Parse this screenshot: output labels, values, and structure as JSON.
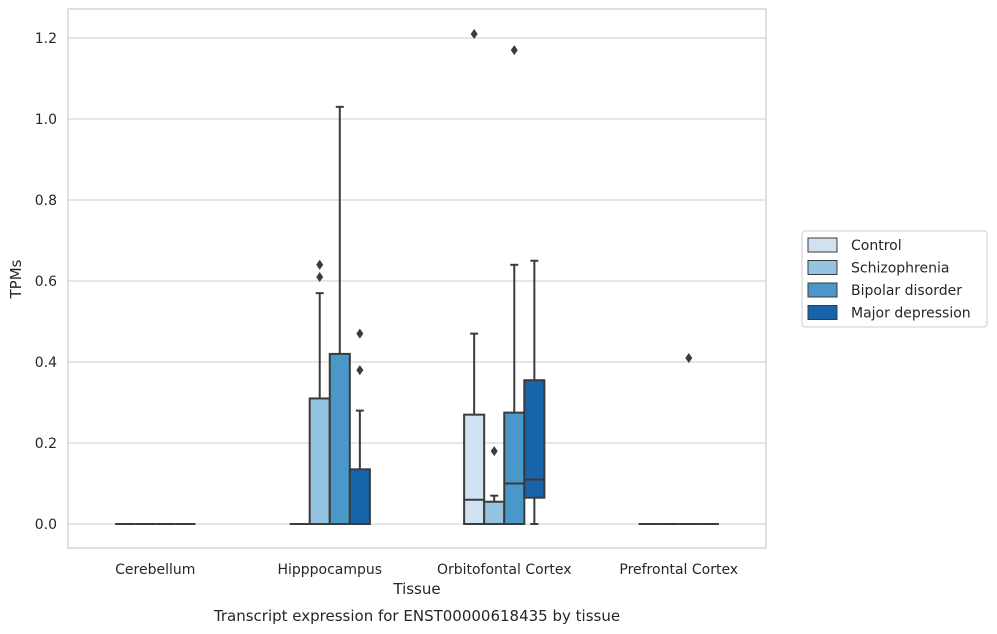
{
  "chart_data": {
    "type": "boxplot",
    "xlabel": "Tissue",
    "ylabel": "TPMs",
    "caption": "Transcript expression for ENST00000618435 by tissue",
    "ylim": [
      -0.06,
      1.27
    ],
    "yticks": [
      "0.0",
      "0.2",
      "0.4",
      "0.6",
      "0.8",
      "1.0",
      "1.2"
    ],
    "grid": "horizontal",
    "legend_position": "right",
    "categories": [
      "Cerebellum",
      "Hipppocampus",
      "Orbitofontal Cortex",
      "Prefrontal Cortex"
    ],
    "series": [
      {
        "name": "Control",
        "color": "#d0e1f2",
        "boxes": [
          {
            "q1": 0,
            "median": 0,
            "q3": 0,
            "whisker_low": 0,
            "whisker_high": 0,
            "outliers": []
          },
          {
            "q1": 0,
            "median": 0,
            "q3": 0,
            "whisker_low": 0,
            "whisker_high": 0,
            "outliers": []
          },
          {
            "q1": 0,
            "median": 0.06,
            "q3": 0.27,
            "whisker_low": 0,
            "whisker_high": 0.47,
            "outliers": [
              1.21
            ]
          },
          {
            "q1": 0,
            "median": 0,
            "q3": 0,
            "whisker_low": 0,
            "whisker_high": 0,
            "outliers": []
          }
        ]
      },
      {
        "name": "Schizophrenia",
        "color": "#94c4df",
        "boxes": [
          {
            "q1": 0,
            "median": 0,
            "q3": 0,
            "whisker_low": 0,
            "whisker_high": 0,
            "outliers": []
          },
          {
            "q1": 0,
            "median": 0,
            "q3": 0.31,
            "whisker_low": 0,
            "whisker_high": 0.57,
            "outliers": [
              0.61,
              0.64
            ]
          },
          {
            "q1": 0,
            "median": 0,
            "q3": 0.055,
            "whisker_low": 0,
            "whisker_high": 0.07,
            "outliers": [
              0.18
            ]
          },
          {
            "q1": 0,
            "median": 0,
            "q3": 0,
            "whisker_low": 0,
            "whisker_high": 0,
            "outliers": []
          }
        ]
      },
      {
        "name": "Bipolar disorder",
        "color": "#4a98c9",
        "boxes": [
          {
            "q1": 0,
            "median": 0,
            "q3": 0,
            "whisker_low": 0,
            "whisker_high": 0,
            "outliers": []
          },
          {
            "q1": 0,
            "median": 0,
            "q3": 0.42,
            "whisker_low": 0,
            "whisker_high": 1.03,
            "outliers": []
          },
          {
            "q1": 0,
            "median": 0.1,
            "q3": 0.275,
            "whisker_low": 0,
            "whisker_high": 0.64,
            "outliers": [
              1.17
            ]
          },
          {
            "q1": 0,
            "median": 0,
            "q3": 0,
            "whisker_low": 0,
            "whisker_high": 0,
            "outliers": [
              0.41
            ]
          }
        ]
      },
      {
        "name": "Major depression",
        "color": "#1764ab",
        "boxes": [
          {
            "q1": 0,
            "median": 0,
            "q3": 0,
            "whisker_low": 0,
            "whisker_high": 0,
            "outliers": []
          },
          {
            "q1": 0,
            "median": 0,
            "q3": 0.135,
            "whisker_low": 0,
            "whisker_high": 0.28,
            "outliers": [
              0.38,
              0.47
            ]
          },
          {
            "q1": 0.065,
            "median": 0.11,
            "q3": 0.355,
            "whisker_low": 0,
            "whisker_high": 0.65,
            "outliers": []
          },
          {
            "q1": 0,
            "median": 0,
            "q3": 0,
            "whisker_low": 0,
            "whisker_high": 0,
            "outliers": []
          }
        ]
      }
    ]
  }
}
